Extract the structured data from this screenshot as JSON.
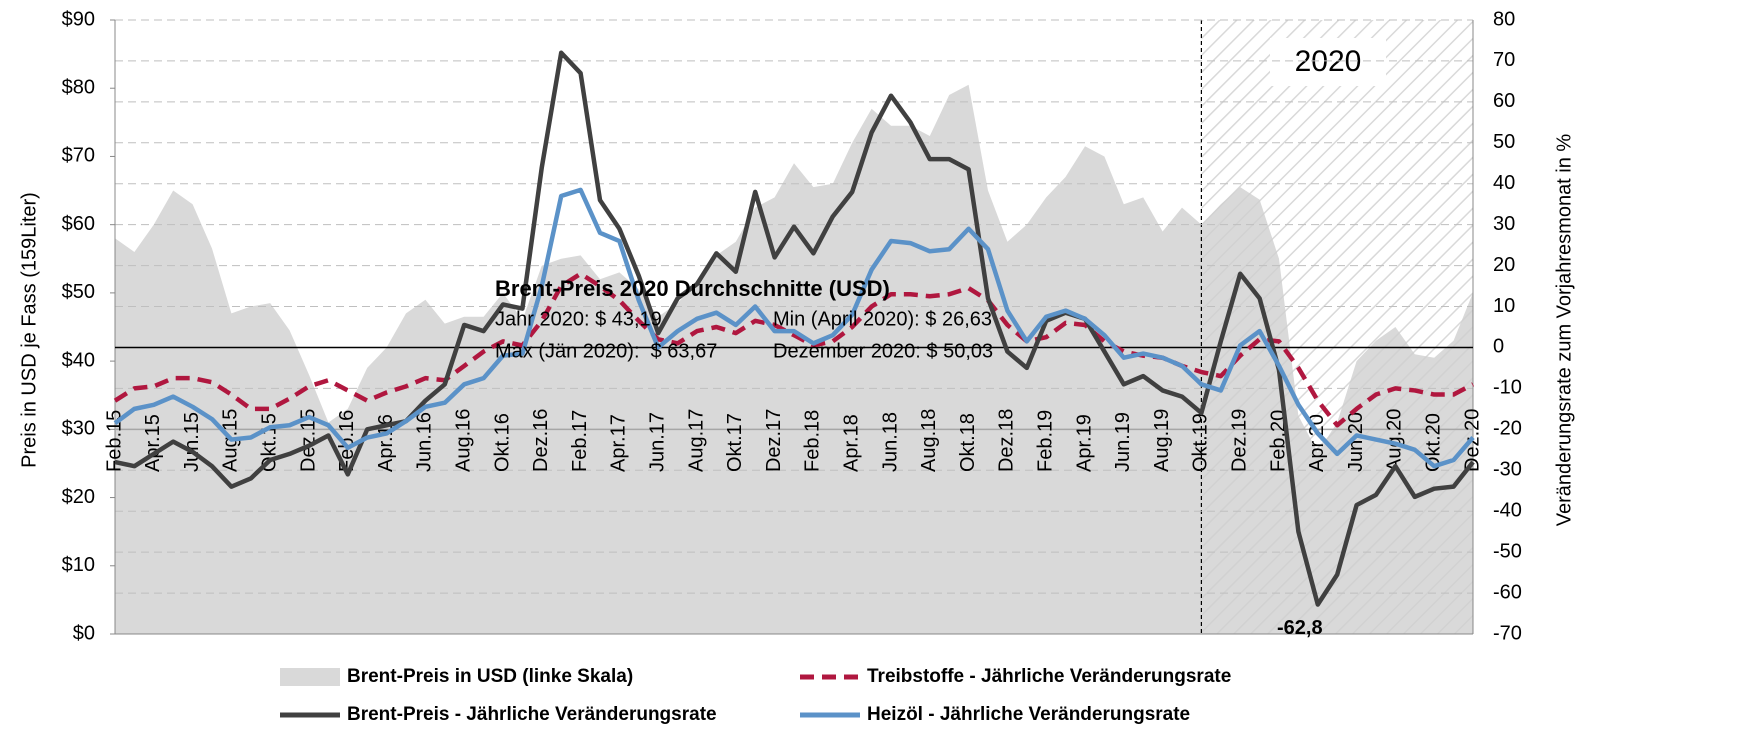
{
  "chart_data": {
    "type": "line",
    "y_label": "Preis in USD je Fass  (159Liter)",
    "y2_label": "Veränderungsrate zum Vorjahresmonat in %",
    "categories": [
      "Feb.15",
      null,
      "Apr.15",
      null,
      "Jun.15",
      null,
      "Aug.15",
      null,
      "Okt.15",
      null,
      "Dez.15",
      null,
      "Feb.16",
      null,
      "Apr.16",
      null,
      "Jun.16",
      null,
      "Aug.16",
      null,
      "Okt.16",
      null,
      "Dez.16",
      null,
      "Feb.17",
      null,
      "Apr.17",
      null,
      "Jun.17",
      null,
      "Aug.17",
      null,
      "Okt.17",
      null,
      "Dez.17",
      null,
      "Feb.18",
      null,
      "Apr.18",
      null,
      "Jun.18",
      null,
      "Aug.18",
      null,
      "Okt.18",
      null,
      "Dez.18",
      null,
      "Feb.19",
      null,
      "Apr.19",
      null,
      "Jun.19",
      null,
      "Aug.19",
      null,
      "Okt.19",
      null,
      "Dez.19",
      null,
      "Feb.20",
      null,
      "Apr.20",
      null,
      "Jun.20",
      null,
      "Aug.20",
      null,
      "Okt.20",
      null,
      "Dez.20"
    ],
    "series": [
      {
        "name": "Brent-Preis in USD (linke Skala)",
        "type": "area",
        "axis": "y",
        "color": "#d9d9d9",
        "values": [
          58,
          56,
          60,
          65,
          63,
          56.5,
          47,
          48,
          48.5,
          44.5,
          38,
          31,
          33,
          39,
          42,
          47,
          49,
          45.5,
          46.5,
          46.5,
          50,
          46,
          54,
          55,
          55.5,
          52,
          53,
          50.5,
          46.5,
          48.5,
          51.5,
          55.5,
          57.5,
          62.5,
          64,
          69,
          65.5,
          66,
          72,
          77,
          74.5,
          74.5,
          73,
          79,
          80.5,
          65,
          57.5,
          60,
          64,
          67,
          71.5,
          70,
          63,
          64,
          59,
          62.5,
          60,
          63,
          65.5,
          63.67,
          55,
          32,
          26.63,
          31,
          40,
          43,
          45,
          41,
          40.5,
          43,
          50.03
        ]
      },
      {
        "name": "Treibstoffe - Jährliche Veränderungsrate",
        "type": "line",
        "dashed": true,
        "axis": "y2",
        "color": "#b0173f",
        "values": [
          -13,
          -10,
          -9.5,
          -7.5,
          -7.5,
          -8.5,
          -11.5,
          -15,
          -15,
          -12.5,
          -9.5,
          -8,
          -10.5,
          -13,
          -11,
          -9.5,
          -7.5,
          -8,
          -4.5,
          -1,
          1.5,
          0.5,
          6.5,
          15,
          18,
          15,
          11.5,
          6.5,
          2,
          1,
          4,
          5,
          3.5,
          6.5,
          5.5,
          3,
          0.5,
          1.5,
          5,
          10,
          13,
          13,
          12.5,
          13,
          14.5,
          11.5,
          5.5,
          1.5,
          2.5,
          6,
          5.5,
          1.5,
          -1,
          -2,
          -2.5,
          -4.5,
          -6,
          -7,
          -2,
          2,
          1.5,
          -5,
          -13,
          -19,
          -15,
          -11.5,
          -10,
          -10.5,
          -11.5,
          -11.5,
          -9
        ]
      },
      {
        "name": "Brent-Preis - Jährliche Veränderungsrate",
        "type": "line",
        "axis": "y2",
        "color": "#404040",
        "values": [
          -28,
          -29,
          -26,
          -23,
          -25.5,
          -29,
          -34,
          -32,
          -27.5,
          -26,
          -24,
          -21.5,
          -31,
          -20,
          -19,
          -18,
          -13,
          -9,
          5.5,
          4,
          10.5,
          9.5,
          44,
          72,
          67,
          36,
          29,
          17.5,
          3.5,
          12,
          15.5,
          23,
          18.5,
          38,
          22,
          29.5,
          23,
          32,
          38,
          52.5,
          61.5,
          55,
          46,
          46,
          43.5,
          12,
          -1,
          -5,
          6.5,
          8.5,
          7,
          -1,
          -9,
          -7,
          -10.5,
          -12,
          -16,
          1.5,
          18,
          12,
          -5.5,
          -45,
          -62.8,
          -55.5,
          -38.5,
          -36,
          -29,
          -36.5,
          -34.5,
          -34,
          -28
        ],
        "value_labels": [
          null,
          null,
          null,
          null,
          null,
          null,
          null,
          null,
          null,
          null,
          null,
          null,
          null,
          null,
          null,
          null,
          null,
          null,
          null,
          null,
          null,
          null,
          null,
          null,
          null,
          null,
          null,
          null,
          null,
          null,
          null,
          null,
          null,
          null,
          null,
          null,
          null,
          null,
          null,
          null,
          null,
          null,
          null,
          null,
          null,
          null,
          null,
          null,
          null,
          null,
          null,
          null,
          null,
          null,
          null,
          null,
          null,
          null,
          null,
          null,
          null,
          null,
          "-62,8",
          null,
          null,
          null,
          null,
          null,
          null,
          null,
          null
        ]
      },
      {
        "name": "Heizöl - Jährliche Veränderungsrate",
        "type": "line",
        "axis": "y2",
        "color": "#5b92c8",
        "values": [
          -18.5,
          -15,
          -14,
          -12,
          -14.5,
          -17.5,
          -22.5,
          -22,
          -19.5,
          -19,
          -17,
          -19,
          -24.5,
          -22,
          -21,
          -18,
          -14.5,
          -13.5,
          -9,
          -7.5,
          -2,
          -1.5,
          15,
          37,
          38.5,
          28,
          26,
          11.5,
          0,
          4,
          7,
          8.5,
          5.5,
          10,
          4,
          4,
          1,
          3,
          8,
          19,
          26,
          25.5,
          23.5,
          24,
          29,
          24,
          9,
          1.5,
          7.5,
          9,
          7,
          3,
          -2.5,
          -1.5,
          -2.5,
          -4.5,
          -9,
          -10.5,
          0.5,
          4,
          -4.5,
          -14,
          -21,
          -26,
          -21.5,
          -22.5,
          -23.5,
          -25,
          -29,
          -27.5,
          -22
        ]
      }
    ],
    "ylim": [
      0,
      90
    ],
    "yticks": [
      {
        "value": 0,
        "label": "$0"
      },
      {
        "value": 10,
        "label": "$10"
      },
      {
        "value": 20,
        "label": "$20"
      },
      {
        "value": 30,
        "label": "$30"
      },
      {
        "value": 40,
        "label": "$40"
      },
      {
        "value": 50,
        "label": "$50"
      },
      {
        "value": 60,
        "label": "$60"
      },
      {
        "value": 70,
        "label": "$70"
      },
      {
        "value": 80,
        "label": "$80"
      },
      {
        "value": 90,
        "label": "$90"
      }
    ],
    "y2lim": [
      -70,
      80
    ],
    "y2ticks": [
      -70,
      -60,
      -50,
      -40,
      -30,
      -20,
      -10,
      0,
      10,
      20,
      30,
      40,
      50,
      60,
      70,
      80
    ],
    "grid": true,
    "reference_lines": [
      {
        "value": 0,
        "color": "#000000"
      },
      {
        "value": -20,
        "color": "#a6a6a6"
      }
    ],
    "shade": {
      "label": "2020",
      "from": 56
    },
    "info_box": {
      "title": "Brent-Preis 2020 Durchschnitte (USD)",
      "lines": [
        "Jahr 2020: $ 43,19",
        "Min (April 2020): $ 26,63",
        "Max (Jän 2020):  $ 63,67",
        "Dezember 2020: $ 50,03"
      ]
    },
    "legend": "bottom"
  }
}
